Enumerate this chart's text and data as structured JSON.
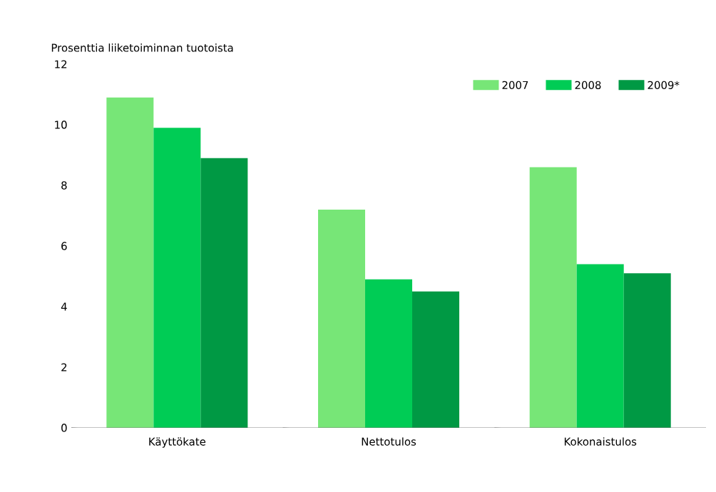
{
  "chart_data": {
    "type": "bar",
    "ylabel": "Prosenttia liiketoiminnan tuotoista",
    "categories": [
      "Käyttökate",
      "Nettotulos",
      "Kokonaistulos"
    ],
    "series": [
      {
        "name": "2007",
        "color": "#77e677",
        "values": [
          10.9,
          7.2,
          8.6
        ]
      },
      {
        "name": "2008",
        "color": "#00cc55",
        "values": [
          9.9,
          4.9,
          5.4
        ]
      },
      {
        "name": "2009*",
        "color": "#009944",
        "values": [
          8.9,
          4.5,
          5.1
        ]
      }
    ],
    "ylim": [
      0,
      12
    ],
    "yticks": [
      0,
      2,
      4,
      6,
      8,
      10,
      12
    ],
    "legend": "top right"
  }
}
